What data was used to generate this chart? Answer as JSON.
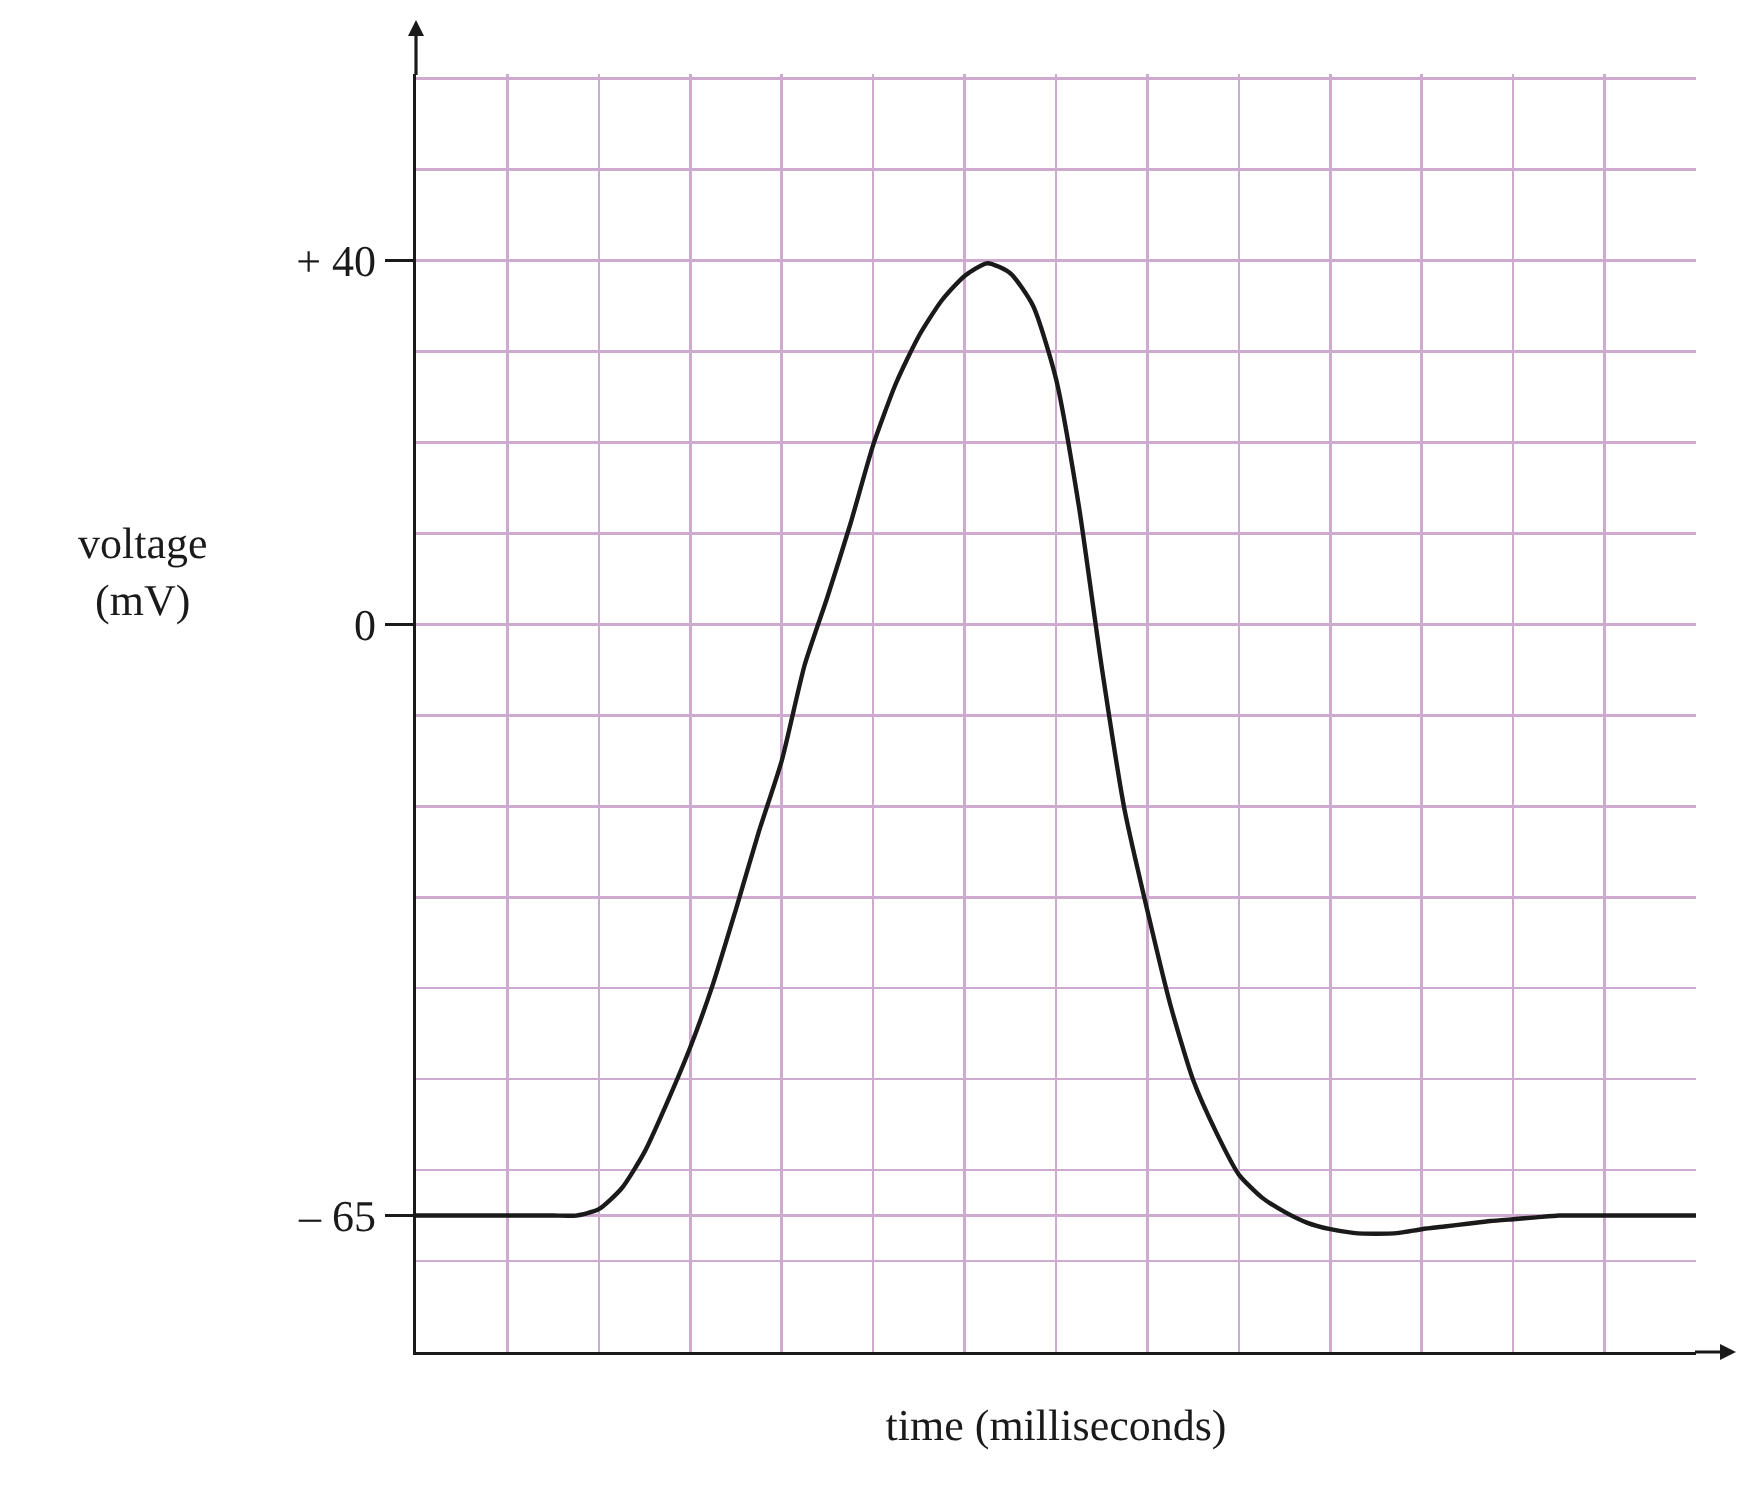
{
  "chart_data": {
    "type": "line",
    "xlabel": "time (milliseconds)",
    "ylabel": "voltage\n(mV)",
    "categories": [
      null,
      null,
      null,
      null,
      null,
      null,
      null,
      null,
      null,
      null,
      null,
      null,
      null,
      null,
      null,
      null,
      null,
      null,
      null,
      null,
      null,
      null,
      null,
      null,
      null,
      null,
      null,
      null,
      null,
      null,
      null,
      null,
      null,
      null,
      null,
      null,
      null,
      null,
      null,
      null,
      null,
      null,
      null,
      null,
      null,
      null,
      null,
      null,
      null,
      null,
      null,
      null,
      null,
      null,
      null,
      null,
      null
    ],
    "series": [
      {
        "color": "#1a1a1a",
        "values": [
          -65,
          -65,
          -65,
          -65,
          -65,
          -65,
          -65,
          -65,
          -64.3,
          -62,
          -58,
          -52.5,
          -46.5,
          -39.5,
          -31.3,
          -22.8,
          -15,
          -4.5,
          3,
          11,
          19.7,
          26.5,
          31.7,
          35.6,
          38.3,
          39.7,
          38.6,
          35,
          27,
          13,
          -4.7,
          -20.4,
          -31.5,
          -41.8,
          -50.1,
          -55.8,
          -60.5,
          -63,
          -64.6,
          -65.8,
          -66.5,
          -66.9,
          -67,
          -66.9,
          -66.5,
          -66.2,
          -65.9,
          -65.6,
          -65.4,
          -65.2,
          -65,
          -65,
          -65,
          -65,
          -65,
          -65,
          -65
        ]
      }
    ],
    "ylim": [
      -80,
      60.5
    ],
    "yticks": [
      {
        "value": -70,
        "label": null
      },
      {
        "value": -65,
        "label": "– 65"
      },
      {
        "value": -60,
        "label": null
      },
      {
        "value": -50,
        "label": null
      },
      {
        "value": -40,
        "label": null
      },
      {
        "value": -30,
        "label": null
      },
      {
        "value": -20,
        "label": null
      },
      {
        "value": -10,
        "label": null
      },
      0,
      {
        "value": 10,
        "label": null
      },
      {
        "value": 20,
        "label": null
      },
      {
        "value": 30,
        "label": null
      },
      {
        "value": 40,
        "label": "+ 40"
      },
      {
        "value": 50,
        "label": null
      },
      {
        "value": 60,
        "label": null
      }
    ],
    "grid": true,
    "tick_labels": "y",
    "marker": "none",
    "line_style": "solid"
  }
}
